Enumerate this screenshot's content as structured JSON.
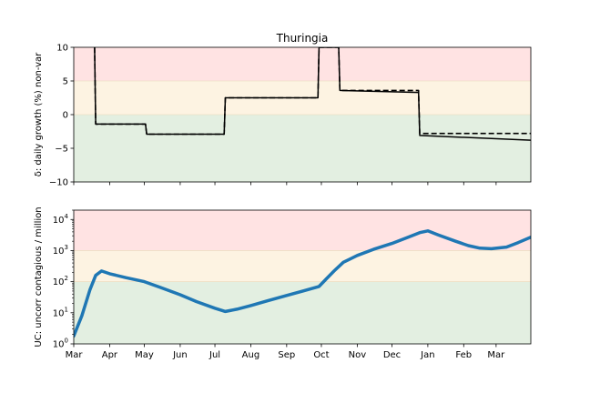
{
  "chart_data": [
    {
      "type": "line",
      "title": "Thuringia",
      "ylabel": "δ: daily growth (%) non-var",
      "ylim": [
        -10,
        10
      ],
      "yticks": [
        -10,
        -5,
        0,
        5,
        10
      ],
      "ytick_labels": [
        "−10",
        "−5",
        "0",
        "5",
        "10"
      ],
      "bands": [
        {
          "from": 5,
          "to": 10,
          "color": "#ffe3e3"
        },
        {
          "from": 0,
          "to": 5,
          "color": "#fdf3e2"
        },
        {
          "from": -10,
          "to": 0,
          "color": "#e3efe1"
        }
      ],
      "xlim": [
        "2020-03-01",
        "2021-03-31"
      ],
      "series": [
        {
          "style": "solid",
          "color": "#000000",
          "x": [
            "2020-03-19",
            "2020-03-20",
            "2020-05-02",
            "2020-05-03",
            "2020-07-09",
            "2020-07-10",
            "2020-09-28",
            "2020-09-29",
            "2020-10-16",
            "2020-10-17",
            "2020-12-24",
            "2020-12-25",
            "2021-03-31"
          ],
          "y": [
            10,
            -1.4,
            -1.4,
            -2.9,
            -2.9,
            2.5,
            2.5,
            10,
            10,
            3.6,
            3.3,
            -3.1,
            -3.8
          ]
        },
        {
          "style": "dashed",
          "color": "#000000",
          "x": [
            "2020-03-19",
            "2020-03-20",
            "2020-05-02",
            "2020-05-03",
            "2020-07-09",
            "2020-07-10",
            "2020-09-28",
            "2020-09-29",
            "2020-10-16",
            "2020-10-17",
            "2020-12-24",
            "2020-12-25",
            "2021-03-31"
          ],
          "y": [
            10,
            -1.4,
            -1.4,
            -2.9,
            -2.9,
            2.5,
            2.5,
            10,
            10,
            3.6,
            3.6,
            -2.8,
            -2.8
          ]
        }
      ]
    },
    {
      "type": "line",
      "ylabel": "UC: uncorr contagious / million",
      "yscale": "log",
      "ylim": [
        1,
        20000
      ],
      "yticks": [
        1,
        10,
        100,
        1000,
        10000
      ],
      "ytick_labels": [
        [
          "10",
          "0"
        ],
        [
          "10",
          "1"
        ],
        [
          "10",
          "2"
        ],
        [
          "10",
          "3"
        ],
        [
          "10",
          "4"
        ]
      ],
      "bands": [
        {
          "from": 1000,
          "to": 20000,
          "color": "#ffe3e3"
        },
        {
          "from": 100,
          "to": 1000,
          "color": "#fdf3e2"
        },
        {
          "from": 1,
          "to": 100,
          "color": "#e3efe1"
        }
      ],
      "xlim": [
        "2020-03-01",
        "2021-03-31"
      ],
      "xticks": [
        "2020-03-01",
        "2020-04-01",
        "2020-05-01",
        "2020-06-01",
        "2020-07-01",
        "2020-08-01",
        "2020-09-01",
        "2020-10-01",
        "2020-11-01",
        "2020-12-01",
        "2021-01-01",
        "2021-02-01",
        "2021-03-01"
      ],
      "xtick_labels": [
        "Mar",
        "Apr",
        "May",
        "Jun",
        "Jul",
        "Aug",
        "Sep",
        "Oct",
        "Nov",
        "Dec",
        "Jan",
        "Feb",
        "Mar"
      ],
      "series": [
        {
          "color": "#1f77b4",
          "x": [
            "2020-03-01",
            "2020-03-08",
            "2020-03-15",
            "2020-03-20",
            "2020-03-25",
            "2020-04-01",
            "2020-04-15",
            "2020-05-01",
            "2020-05-15",
            "2020-06-01",
            "2020-06-15",
            "2020-07-01",
            "2020-07-10",
            "2020-07-20",
            "2020-08-01",
            "2020-08-15",
            "2020-09-01",
            "2020-09-15",
            "2020-09-29",
            "2020-10-05",
            "2020-10-12",
            "2020-10-20",
            "2020-11-01",
            "2020-11-15",
            "2020-12-01",
            "2020-12-15",
            "2020-12-25",
            "2021-01-01",
            "2021-01-10",
            "2021-01-25",
            "2021-02-05",
            "2021-02-15",
            "2021-02-25",
            "2021-03-10",
            "2021-03-20",
            "2021-03-31"
          ],
          "y": [
            1.8,
            8,
            55,
            160,
            220,
            180,
            135,
            100,
            65,
            38,
            23,
            14,
            11,
            13,
            17,
            24,
            36,
            50,
            70,
            120,
            220,
            420,
            700,
            1100,
            1700,
            2700,
            3800,
            4300,
            3200,
            2000,
            1450,
            1200,
            1150,
            1300,
            1800,
            2700
          ]
        }
      ]
    }
  ]
}
